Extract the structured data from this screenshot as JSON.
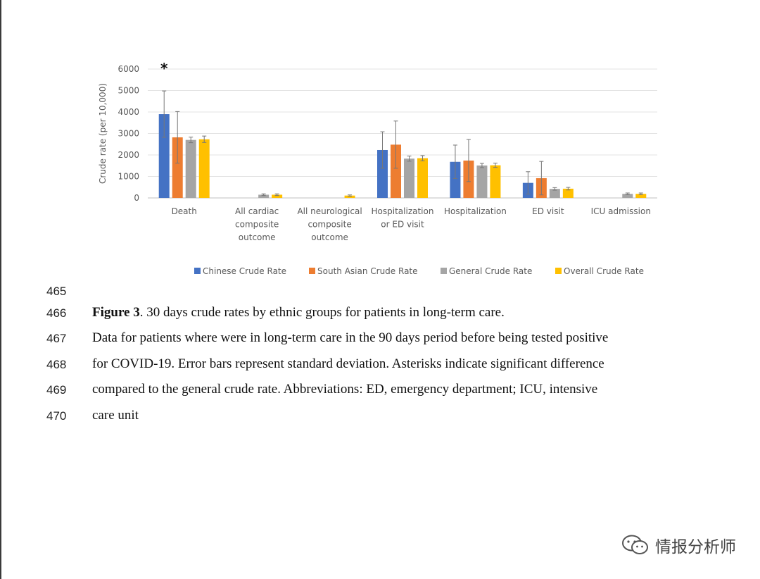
{
  "chart_data": {
    "type": "bar",
    "ylabel": "Crude rate (per 10,000)",
    "ylim": [
      0,
      6000
    ],
    "yticks": [
      0,
      1000,
      2000,
      3000,
      4000,
      5000,
      6000
    ],
    "grid": true,
    "legend_position": "bottom",
    "categories": [
      [
        "Death"
      ],
      [
        "All cardiac",
        "composite",
        "outcome"
      ],
      [
        "All neurological",
        "composite",
        "outcome"
      ],
      [
        "Hospitalization",
        "or ED visit"
      ],
      [
        "Hospitalization"
      ],
      [
        "ED visit"
      ],
      [
        "ICU admission"
      ]
    ],
    "series": [
      {
        "name": "Chinese Crude Rate",
        "color": "#4472C4",
        "values": [
          3900,
          0,
          0,
          2230,
          1680,
          700,
          0
        ],
        "errors": [
          1080,
          0,
          0,
          850,
          780,
          520,
          0
        ]
      },
      {
        "name": "South Asian Crude Rate",
        "color": "#ED7D31",
        "values": [
          2820,
          0,
          0,
          2480,
          1740,
          920,
          0
        ],
        "errors": [
          1200,
          0,
          0,
          1100,
          980,
          780,
          0
        ]
      },
      {
        "name": "General Crude Rate",
        "color": "#A5A5A5",
        "values": [
          2700,
          150,
          0,
          1830,
          1510,
          420,
          190
        ],
        "errors": [
          130,
          40,
          0,
          120,
          100,
          60,
          40
        ]
      },
      {
        "name": "Overall Crude Rate",
        "color": "#FFC000",
        "values": [
          2730,
          150,
          110,
          1850,
          1520,
          430,
          190
        ],
        "errors": [
          150,
          40,
          30,
          120,
          100,
          60,
          40
        ]
      }
    ],
    "annotations": [
      {
        "category": 0,
        "text": "*"
      }
    ]
  },
  "caption": {
    "lines": [
      {
        "number": "465",
        "text": ""
      },
      {
        "number": "466",
        "bold": "Figure 3",
        "text": ". 30 days crude rates by ethnic groups for patients in long-term care."
      },
      {
        "number": "467",
        "text": "Data for patients where were in long-term care in the 90 days period before being tested positive"
      },
      {
        "number": "468",
        "text": "for COVID-19. Error bars represent standard deviation. Asterisks indicate significant difference"
      },
      {
        "number": "469",
        "text": "compared to the general crude rate. Abbreviations: ED, emergency department; ICU, intensive"
      },
      {
        "number": "470",
        "text": "care unit"
      }
    ]
  },
  "watermark": {
    "icon": "wechat-icon",
    "text": "情报分析师"
  }
}
